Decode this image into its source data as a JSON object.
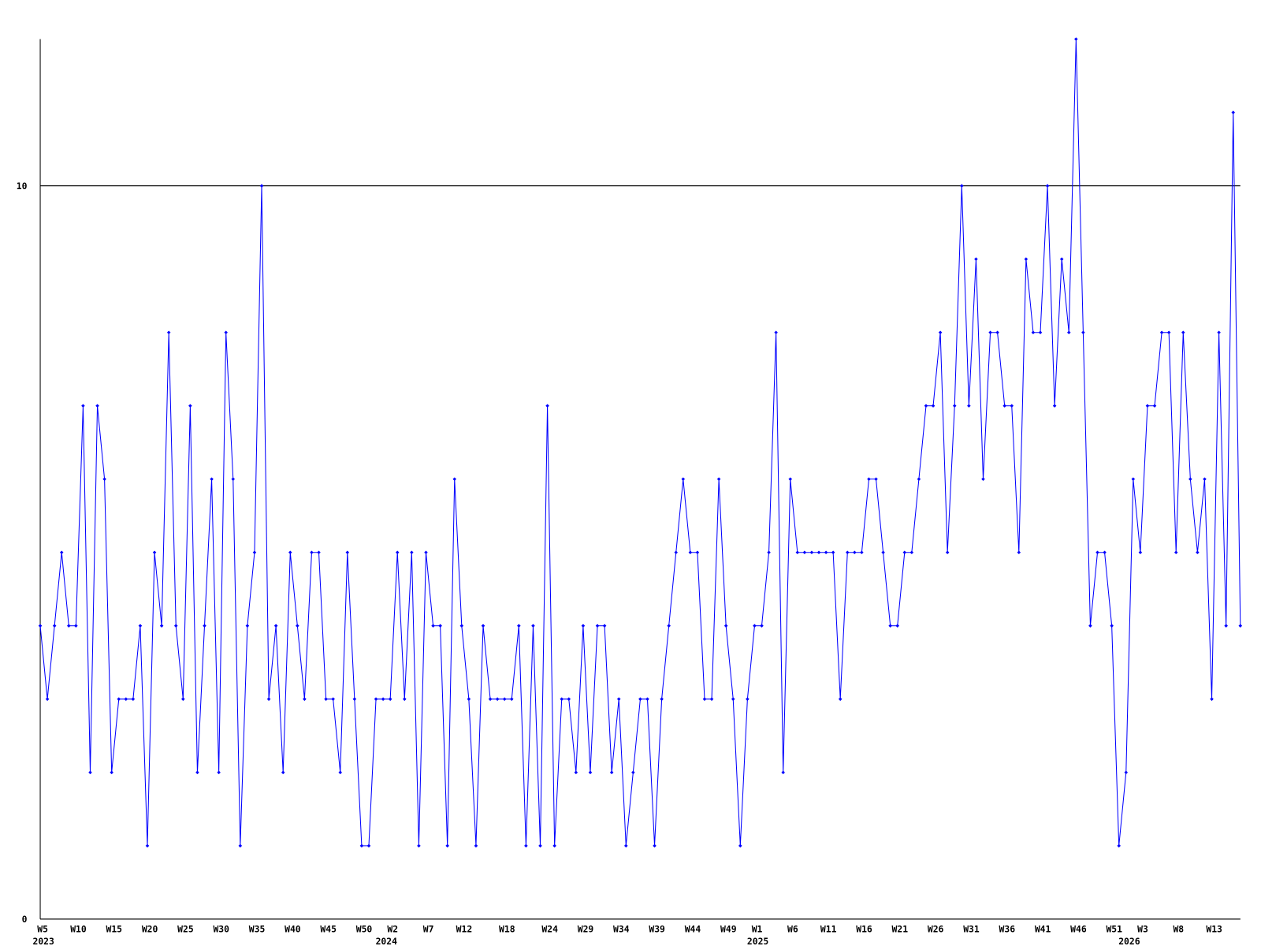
{
  "chart_data": {
    "type": "line",
    "categories": [
      "W5",
      null,
      null,
      null,
      null,
      "W10",
      null,
      null,
      null,
      null,
      "W15",
      null,
      null,
      null,
      null,
      "W20",
      null,
      null,
      null,
      null,
      "W25",
      null,
      null,
      null,
      null,
      "W30",
      null,
      null,
      null,
      null,
      "W35",
      null,
      null,
      null,
      null,
      "W40",
      null,
      null,
      null,
      null,
      "W45",
      null,
      null,
      null,
      null,
      "W50",
      null,
      null,
      null,
      "W2",
      null,
      null,
      null,
      null,
      "W7",
      null,
      null,
      null,
      null,
      "W12",
      null,
      null,
      null,
      null,
      null,
      "W18",
      null,
      null,
      null,
      null,
      null,
      "W24",
      null,
      null,
      null,
      null,
      "W29",
      null,
      null,
      null,
      null,
      "W34",
      null,
      null,
      null,
      null,
      "W39",
      null,
      null,
      null,
      null,
      "W44",
      null,
      null,
      null,
      null,
      "W49",
      null,
      null,
      null,
      "W1",
      null,
      null,
      null,
      null,
      "W6",
      null,
      null,
      null,
      null,
      "W11",
      null,
      null,
      null,
      null,
      "W16",
      null,
      null,
      null,
      null,
      "W21",
      null,
      null,
      null,
      null,
      "W26",
      null,
      null,
      null,
      null,
      "W31",
      null,
      null,
      null,
      null,
      "W36",
      null,
      null,
      null,
      null,
      "W41",
      null,
      null,
      null,
      null,
      "W46",
      null,
      null,
      null,
      null,
      "W51",
      null,
      null,
      null,
      "W3",
      null,
      null,
      null,
      null,
      "W8",
      null,
      null,
      null,
      null,
      "W13",
      null,
      null,
      null,
      null
    ],
    "category_years": [
      "2023",
      null,
      null,
      null,
      null,
      null,
      null,
      null,
      null,
      null,
      null,
      null,
      null,
      null,
      null,
      null,
      null,
      null,
      null,
      null,
      null,
      null,
      null,
      null,
      null,
      null,
      null,
      null,
      null,
      null,
      null,
      null,
      null,
      null,
      null,
      null,
      null,
      null,
      null,
      null,
      null,
      null,
      null,
      null,
      null,
      null,
      null,
      null,
      "2024",
      null,
      null,
      null,
      null,
      null,
      null,
      null,
      null,
      null,
      null,
      null,
      null,
      null,
      null,
      null,
      null,
      null,
      null,
      null,
      null,
      null,
      null,
      null,
      null,
      null,
      null,
      null,
      null,
      null,
      null,
      null,
      null,
      null,
      null,
      null,
      null,
      null,
      null,
      null,
      null,
      null,
      null,
      null,
      null,
      null,
      null,
      null,
      null,
      null,
      null,
      null,
      "2025",
      null,
      null,
      null,
      null,
      null,
      null,
      null,
      null,
      null,
      null,
      null,
      null,
      null,
      null,
      null,
      null,
      null,
      null,
      null,
      null,
      null,
      null,
      null,
      null,
      null,
      null,
      null,
      null,
      null,
      null,
      null,
      null,
      null,
      null,
      null,
      null,
      null,
      null,
      null,
      null,
      null,
      null,
      null,
      null,
      null,
      null,
      null,
      null,
      null,
      null,
      null,
      "2026",
      null,
      null,
      null,
      null,
      null,
      null,
      null,
      null,
      null,
      null,
      null,
      null,
      null,
      null,
      null,
      null
    ],
    "series": [
      {
        "color": "#0000ff",
        "values": [
          4,
          3,
          4,
          5,
          4,
          4,
          7,
          2,
          7,
          6,
          2,
          3,
          3,
          3,
          4,
          1,
          5,
          4,
          8,
          4,
          3,
          7,
          2,
          4,
          6,
          2,
          8,
          6,
          1,
          4,
          5,
          10,
          3,
          4,
          2,
          5,
          4,
          3,
          5,
          5,
          3,
          3,
          2,
          5,
          3,
          1,
          1,
          3,
          3,
          3,
          5,
          3,
          5,
          1,
          5,
          4,
          4,
          1,
          6,
          4,
          3,
          1,
          4,
          3,
          3,
          3,
          3,
          4,
          1,
          4,
          1,
          7,
          1,
          3,
          3,
          2,
          4,
          2,
          4,
          4,
          2,
          3,
          1,
          2,
          3,
          3,
          1,
          3,
          4,
          5,
          6,
          5,
          5,
          3,
          3,
          6,
          4,
          3,
          1,
          3,
          4,
          4,
          5,
          8,
          2,
          6,
          5,
          5,
          5,
          5,
          5,
          5,
          3,
          5,
          5,
          5,
          6,
          6,
          5,
          4,
          4,
          5,
          5,
          6,
          7,
          7,
          8,
          5,
          7,
          10,
          7,
          9,
          6,
          8,
          8,
          7,
          7,
          5,
          9,
          8,
          8,
          10,
          7,
          9,
          8,
          12,
          8,
          4,
          5,
          5,
          4,
          1,
          2,
          6,
          5,
          7,
          7,
          8,
          8,
          5,
          8,
          6,
          5,
          6,
          3,
          8,
          4,
          11,
          4
        ]
      }
    ],
    "ylim": [
      0,
      12
    ],
    "yticks": [
      0,
      10
    ],
    "grid": true
  }
}
